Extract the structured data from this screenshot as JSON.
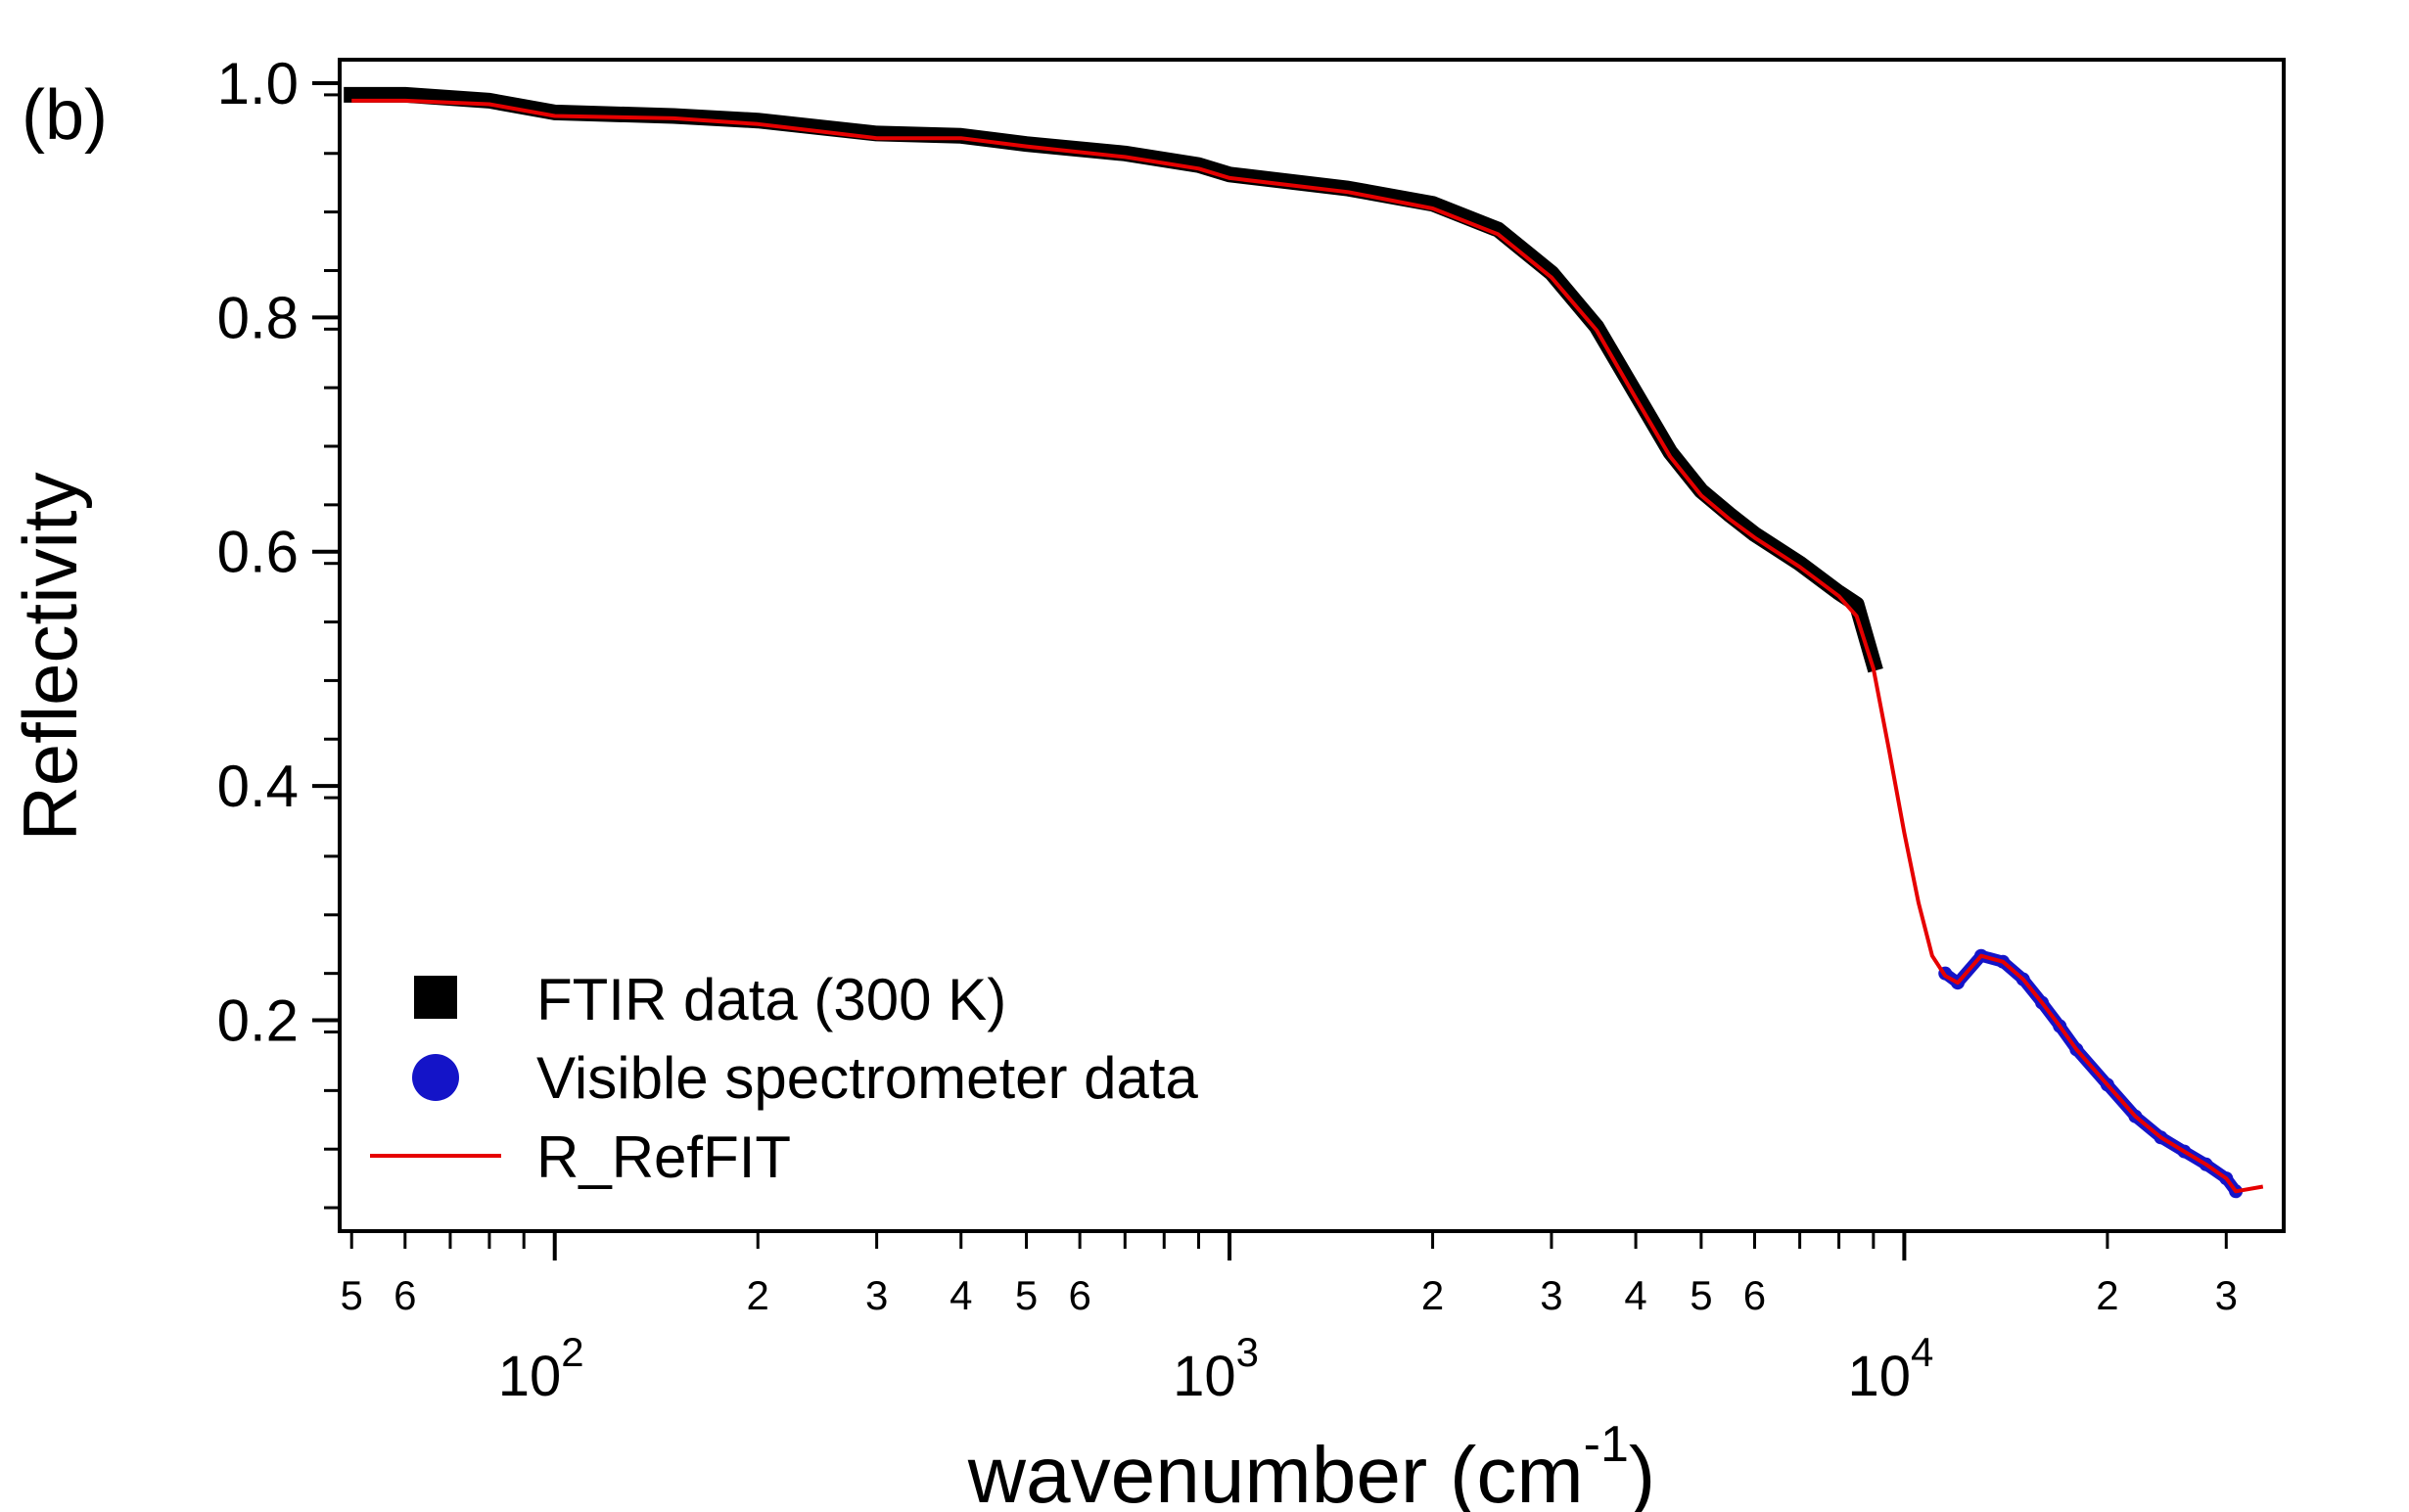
{
  "panel_label": "(b)",
  "chart_data": {
    "type": "line",
    "title": "",
    "xlabel": "wavenumber (cm",
    "xlabel_superscript": "-1",
    "xlabel_close": ")",
    "ylabel": "Reflectivity",
    "xscale": "log",
    "xlim": [
      48,
      36500
    ],
    "ylim": [
      0.02,
      1.02
    ],
    "grid": false,
    "legend_position": "bottom-left",
    "y_ticks": [
      {
        "value": 0.2,
        "label": "0.2"
      },
      {
        "value": 0.4,
        "label": "0.4"
      },
      {
        "value": 0.6,
        "label": "0.6"
      },
      {
        "value": 0.8,
        "label": "0.8"
      },
      {
        "value": 1.0,
        "label": "1.0"
      }
    ],
    "x_major_ticks": [
      {
        "value": 100,
        "base": "10",
        "exp": "2"
      },
      {
        "value": 1000,
        "base": "10",
        "exp": "3"
      },
      {
        "value": 10000,
        "base": "10",
        "exp": "4"
      }
    ],
    "x_minor_labels": [
      {
        "value": 50,
        "label": "5"
      },
      {
        "value": 60,
        "label": "6"
      },
      {
        "value": 200,
        "label": "2"
      },
      {
        "value": 300,
        "label": "3"
      },
      {
        "value": 400,
        "label": "4"
      },
      {
        "value": 500,
        "label": "5"
      },
      {
        "value": 600,
        "label": "6"
      },
      {
        "value": 2000,
        "label": "2"
      },
      {
        "value": 3000,
        "label": "3"
      },
      {
        "value": 4000,
        "label": "4"
      },
      {
        "value": 5000,
        "label": "5"
      },
      {
        "value": 6000,
        "label": "6"
      },
      {
        "value": 20000,
        "label": "2"
      },
      {
        "value": 30000,
        "label": "3"
      }
    ],
    "series": [
      {
        "name": "FTIR data (300 K)",
        "color": "#000000",
        "marker": "square",
        "x": [
          50,
          60,
          80,
          100,
          150,
          200,
          300,
          400,
          500,
          700,
          900,
          1000,
          1500,
          2000,
          2500,
          3000,
          3500,
          4000,
          4500,
          5000,
          5500,
          6000,
          7000,
          8000,
          8500,
          9000
        ],
        "y": [
          0.99,
          0.99,
          0.985,
          0.975,
          0.972,
          0.968,
          0.957,
          0.955,
          0.948,
          0.94,
          0.93,
          0.922,
          0.91,
          0.897,
          0.875,
          0.838,
          0.792,
          0.735,
          0.685,
          0.652,
          0.632,
          0.615,
          0.59,
          0.565,
          0.555,
          0.505
        ]
      },
      {
        "name": "Visible spectrometer data",
        "color": "#1414c8",
        "marker": "circle",
        "x": [
          11500,
          12000,
          13000,
          14000,
          15000,
          16000,
          17000,
          18000,
          20000,
          22000,
          24000,
          26000,
          28000,
          30000,
          31000
        ],
        "y": [
          0.24,
          0.232,
          0.255,
          0.25,
          0.235,
          0.215,
          0.195,
          0.175,
          0.145,
          0.118,
          0.1,
          0.088,
          0.077,
          0.065,
          0.054
        ]
      },
      {
        "name": "R_RefFIT",
        "color": "#e60000",
        "marker": "line",
        "x": [
          50,
          60,
          80,
          100,
          150,
          200,
          300,
          400,
          500,
          700,
          900,
          1000,
          1500,
          2000,
          2500,
          3000,
          3500,
          4000,
          4500,
          5000,
          5500,
          6000,
          7000,
          8000,
          8500,
          9000,
          9500,
          10000,
          10500,
          11000,
          11500,
          12000,
          13000,
          14000,
          15000,
          16000,
          17000,
          18000,
          20000,
          22000,
          24000,
          26000,
          28000,
          30000,
          31000,
          34000
        ],
        "y": [
          0.985,
          0.985,
          0.982,
          0.972,
          0.97,
          0.965,
          0.953,
          0.953,
          0.946,
          0.937,
          0.927,
          0.919,
          0.907,
          0.893,
          0.871,
          0.834,
          0.789,
          0.731,
          0.681,
          0.648,
          0.628,
          0.612,
          0.587,
          0.562,
          0.545,
          0.5,
          0.43,
          0.36,
          0.3,
          0.255,
          0.238,
          0.232,
          0.255,
          0.25,
          0.235,
          0.215,
          0.195,
          0.175,
          0.145,
          0.118,
          0.1,
          0.088,
          0.077,
          0.065,
          0.054,
          0.058
        ]
      }
    ]
  }
}
